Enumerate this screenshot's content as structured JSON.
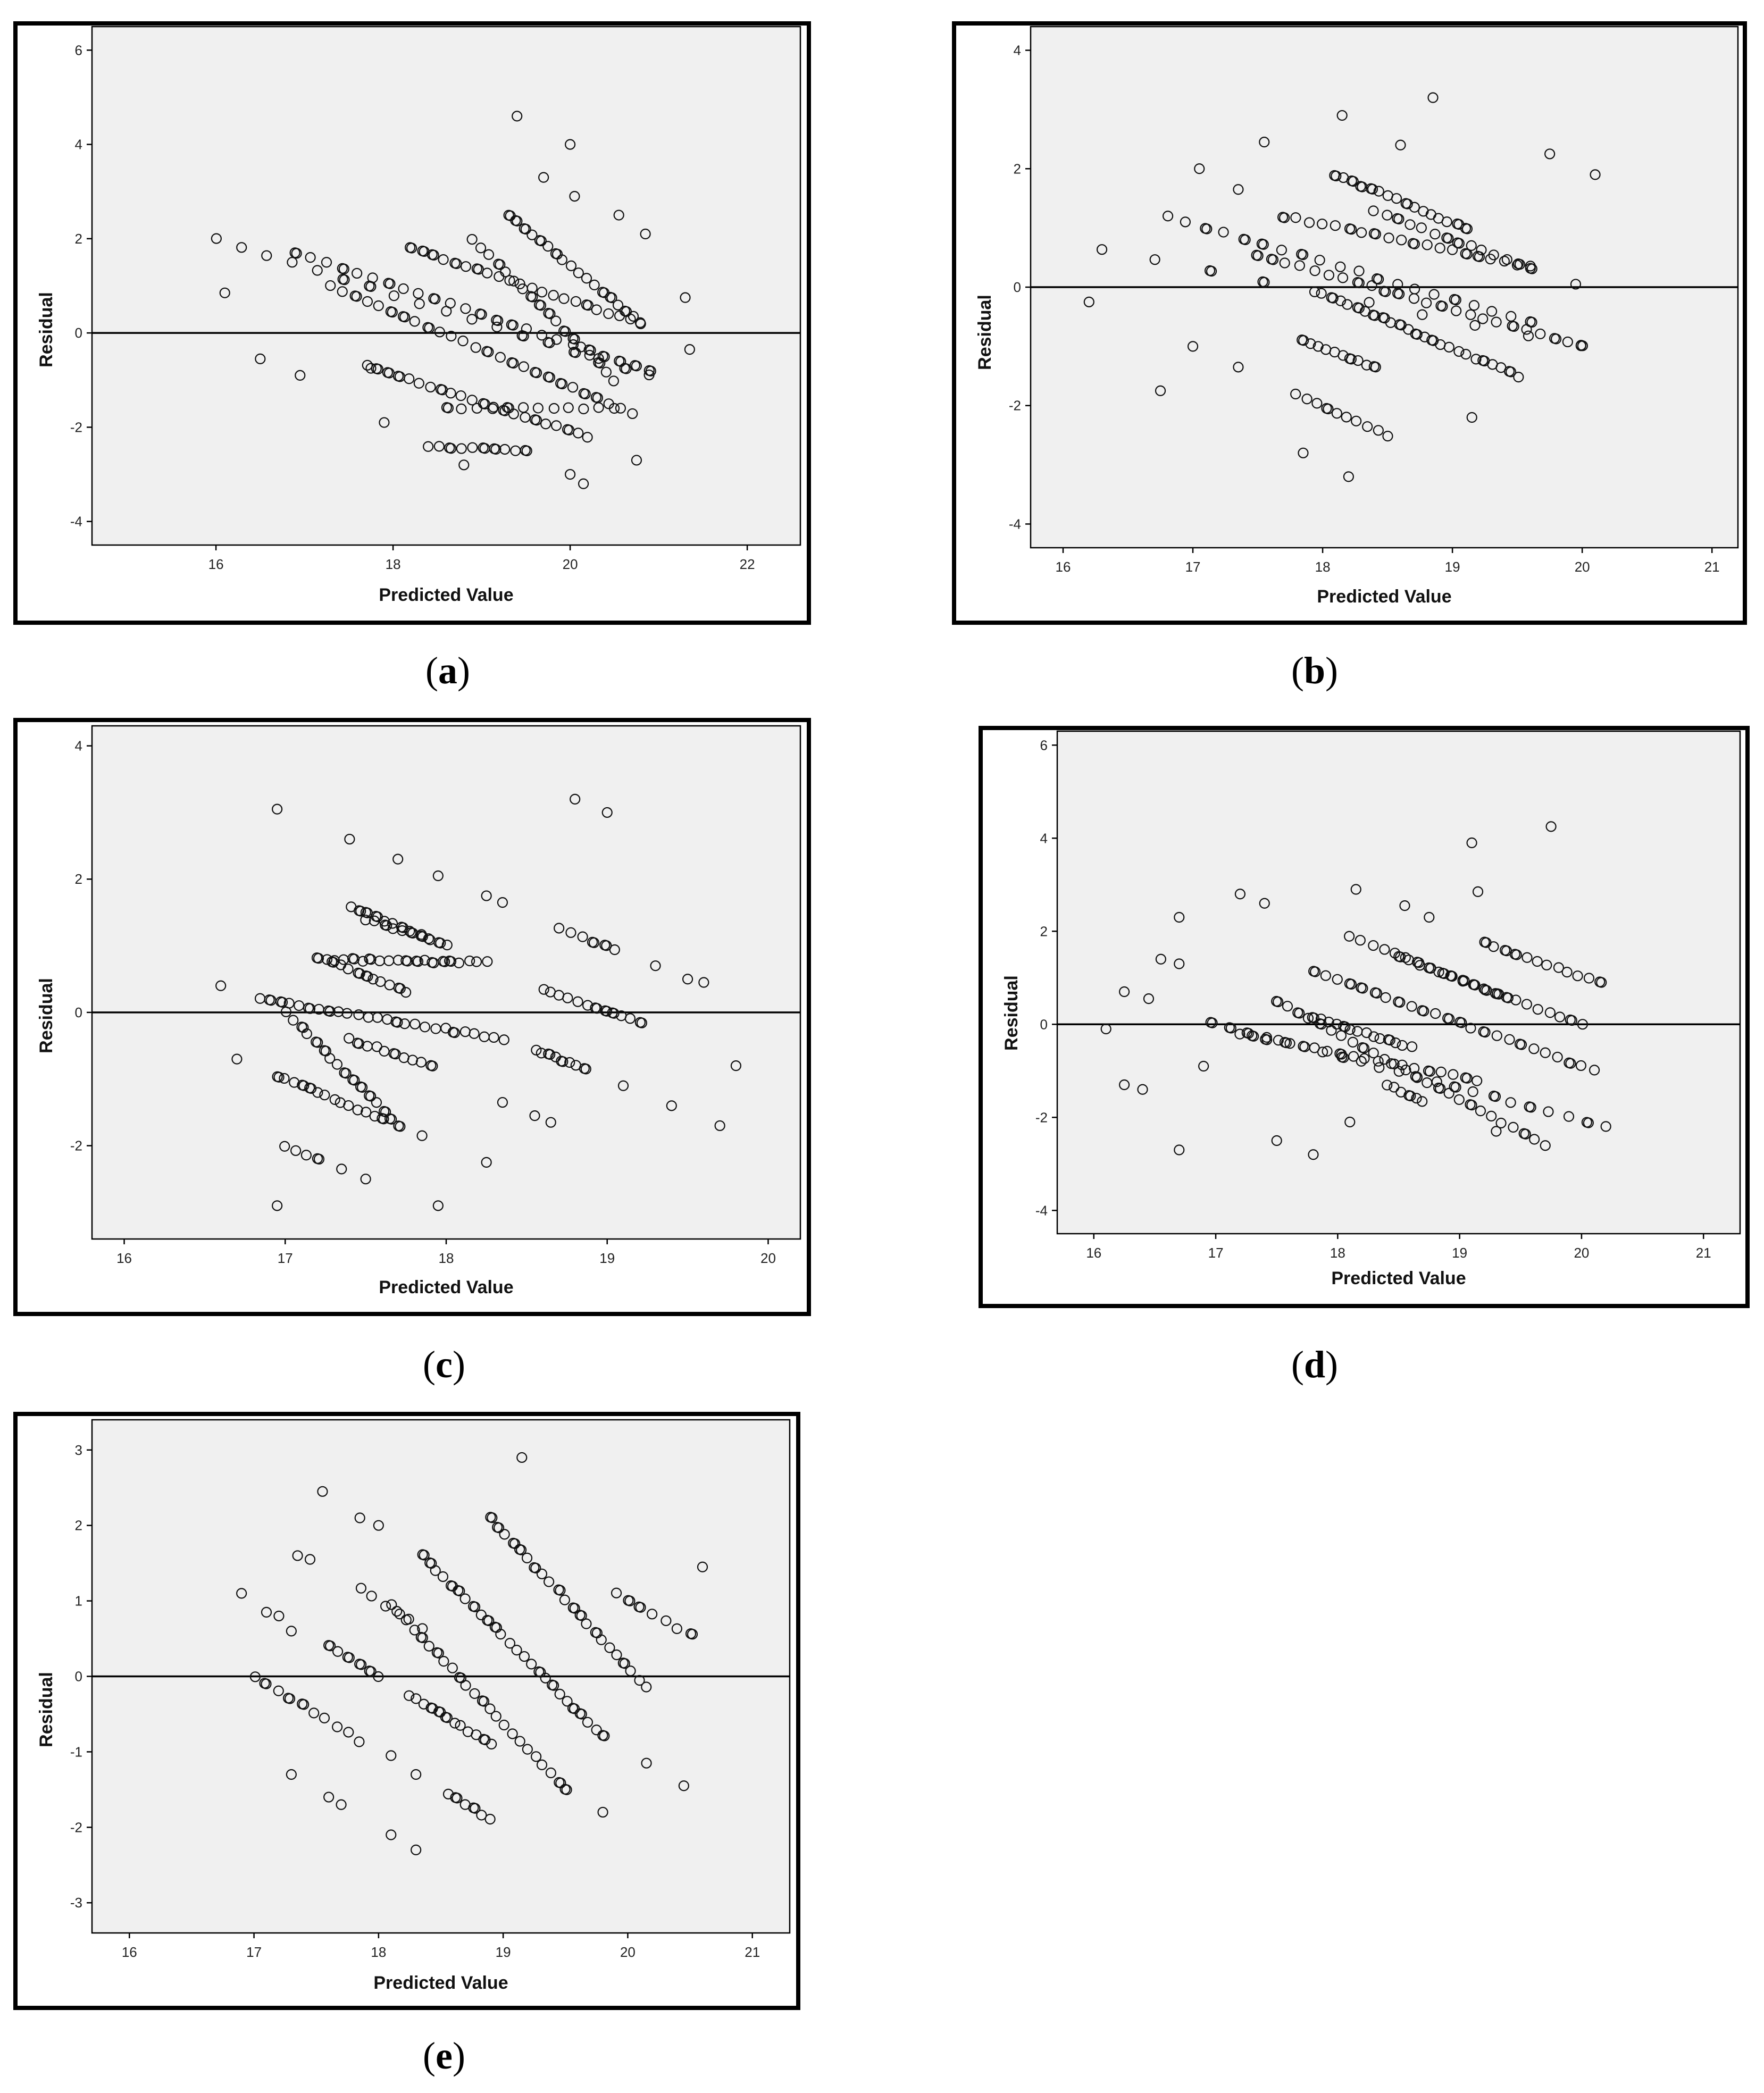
{
  "chart_data": [
    {
      "type": "scatter",
      "caption_letter": "a",
      "xlabel": "Predicted Value",
      "ylabel": "Residual",
      "xlim": [
        14.6,
        22.6
      ],
      "ylim": [
        -4.5,
        6.5
      ],
      "xticks": [
        16,
        18,
        20,
        22
      ],
      "yticks": [
        -4,
        -2,
        0,
        2,
        4,
        6
      ],
      "reference_line": 0,
      "grid": false,
      "bands": [
        {
          "x0": 16.0,
          "y0": 2.0,
          "x1": 20.9,
          "y1": -0.9,
          "n": 18
        },
        {
          "x0": 16.9,
          "y0": 1.7,
          "x1": 20.9,
          "y1": -0.8,
          "n": 24
        },
        {
          "x0": 17.3,
          "y0": 1.0,
          "x1": 20.7,
          "y1": -1.7,
          "n": 26
        },
        {
          "x0": 17.7,
          "y0": -0.7,
          "x1": 20.2,
          "y1": -2.2,
          "n": 22
        },
        {
          "x0": 18.2,
          "y0": 1.8,
          "x1": 20.8,
          "y1": 0.2,
          "n": 22
        },
        {
          "x0": 18.9,
          "y0": 2.0,
          "x1": 20.5,
          "y1": -1.0,
          "n": 18
        },
        {
          "x0": 19.3,
          "y0": 2.5,
          "x1": 20.8,
          "y1": 0.2,
          "n": 18
        },
        {
          "x0": 18.6,
          "y0": -1.6,
          "x1": 20.5,
          "y1": -1.6,
          "n": 12
        },
        {
          "x0": 18.4,
          "y0": -2.4,
          "x1": 19.5,
          "y1": -2.5,
          "n": 10
        }
      ],
      "outliers": [
        [
          19.4,
          4.6
        ],
        [
          20.0,
          4.0
        ],
        [
          19.7,
          3.3
        ],
        [
          20.05,
          2.9
        ],
        [
          20.55,
          2.5
        ],
        [
          20.85,
          2.1
        ],
        [
          16.1,
          0.85
        ],
        [
          16.5,
          -0.55
        ],
        [
          16.95,
          -0.9
        ],
        [
          17.75,
          -0.75
        ],
        [
          20.0,
          -3.0
        ],
        [
          20.15,
          -3.2
        ],
        [
          20.75,
          -2.7
        ],
        [
          21.3,
          0.75
        ],
        [
          21.35,
          -0.35
        ],
        [
          17.9,
          -1.9
        ],
        [
          18.8,
          -2.8
        ]
      ]
    },
    {
      "type": "scatter",
      "caption_letter": "b",
      "xlabel": "Predicted Value",
      "ylabel": "Residual",
      "xlim": [
        15.75,
        21.2
      ],
      "ylim": [
        -4.4,
        4.4
      ],
      "xticks": [
        16,
        17,
        18,
        19,
        20,
        21
      ],
      "yticks": [
        -4,
        -2,
        0,
        2,
        4
      ],
      "reference_line": 0,
      "grid": false,
      "bands": [
        {
          "x0": 16.3,
          "y0": 0.65,
          "x1": 20.0,
          "y1": -1.0,
          "n": 10
        },
        {
          "x0": 16.8,
          "y0": 1.2,
          "x1": 19.6,
          "y1": -0.6,
          "n": 20
        },
        {
          "x0": 17.5,
          "y0": 0.55,
          "x1": 20.0,
          "y1": -1.0,
          "n": 24
        },
        {
          "x0": 17.7,
          "y0": 1.2,
          "x1": 19.6,
          "y1": 0.35,
          "n": 20
        },
        {
          "x0": 18.0,
          "y0": -0.1,
          "x1": 19.5,
          "y1": -1.5,
          "n": 24
        },
        {
          "x0": 17.85,
          "y0": -0.9,
          "x1": 18.4,
          "y1": -1.35,
          "n": 10
        },
        {
          "x0": 18.1,
          "y0": 1.9,
          "x1": 19.1,
          "y1": 1.0,
          "n": 16
        },
        {
          "x0": 17.8,
          "y0": -1.8,
          "x1": 18.5,
          "y1": -2.5,
          "n": 10
        },
        {
          "x0": 18.4,
          "y0": 1.3,
          "x1": 19.6,
          "y1": 0.3,
          "n": 14
        }
      ],
      "outliers": [
        [
          18.85,
          3.2
        ],
        [
          18.15,
          2.9
        ],
        [
          17.55,
          2.45
        ],
        [
          18.6,
          2.4
        ],
        [
          19.75,
          2.25
        ],
        [
          20.1,
          1.9
        ],
        [
          17.05,
          2.0
        ],
        [
          17.35,
          1.65
        ],
        [
          16.2,
          -0.25
        ],
        [
          16.75,
          -1.75
        ],
        [
          17.0,
          -1.0
        ],
        [
          17.35,
          -1.35
        ],
        [
          17.85,
          -2.8
        ],
        [
          18.2,
          -3.2
        ],
        [
          19.15,
          -2.2
        ],
        [
          19.95,
          0.05
        ]
      ]
    },
    {
      "type": "scatter",
      "caption_letter": "c",
      "xlabel": "Predicted Value",
      "ylabel": "Residual",
      "xlim": [
        15.8,
        20.2
      ],
      "ylim": [
        -3.4,
        4.3
      ],
      "xticks": [
        16,
        17,
        18,
        19,
        20
      ],
      "yticks": [
        -2,
        0,
        2,
        4
      ],
      "reference_line": 0,
      "grid": false,
      "bands": [
        {
          "x0": 16.85,
          "y0": 0.2,
          "x1": 18.35,
          "y1": -0.4,
          "n": 26
        },
        {
          "x0": 17.0,
          "y0": 0.0,
          "x1": 17.7,
          "y1": -1.7,
          "n": 16
        },
        {
          "x0": 17.2,
          "y0": 0.8,
          "x1": 18.25,
          "y1": 0.75,
          "n": 20
        },
        {
          "x0": 17.3,
          "y0": 0.75,
          "x1": 17.75,
          "y1": 0.3,
          "n": 10
        },
        {
          "x0": 17.4,
          "y0": 1.6,
          "x1": 18.0,
          "y1": 1.0,
          "n": 12
        },
        {
          "x0": 17.5,
          "y0": 1.4,
          "x1": 17.9,
          "y1": 1.1,
          "n": 8
        },
        {
          "x0": 16.95,
          "y0": -0.95,
          "x1": 17.6,
          "y1": -1.6,
          "n": 14
        },
        {
          "x0": 17.0,
          "y0": -2.0,
          "x1": 17.2,
          "y1": -2.2,
          "n": 4
        },
        {
          "x0": 17.4,
          "y0": -0.4,
          "x1": 17.9,
          "y1": -0.8,
          "n": 10
        },
        {
          "x0": 18.6,
          "y0": 0.35,
          "x1": 19.2,
          "y1": -0.15,
          "n": 12
        },
        {
          "x0": 18.55,
          "y0": -0.55,
          "x1": 18.85,
          "y1": -0.85,
          "n": 8
        },
        {
          "x0": 18.7,
          "y0": 1.25,
          "x1": 19.05,
          "y1": 0.95,
          "n": 6
        }
      ],
      "outliers": [
        [
          16.95,
          3.05
        ],
        [
          17.4,
          2.6
        ],
        [
          17.7,
          2.3
        ],
        [
          17.95,
          2.05
        ],
        [
          18.8,
          3.2
        ],
        [
          19.0,
          3.0
        ],
        [
          16.6,
          0.4
        ],
        [
          16.7,
          -0.7
        ],
        [
          16.95,
          -2.9
        ],
        [
          17.35,
          -2.35
        ],
        [
          17.5,
          -2.5
        ],
        [
          17.85,
          -1.85
        ],
        [
          17.95,
          -2.9
        ],
        [
          18.25,
          -2.25
        ],
        [
          18.35,
          -1.35
        ],
        [
          18.65,
          -1.65
        ],
        [
          19.1,
          -1.1
        ],
        [
          19.3,
          0.7
        ],
        [
          19.4,
          -1.4
        ],
        [
          19.5,
          0.5
        ],
        [
          19.6,
          0.45
        ],
        [
          19.7,
          -1.7
        ],
        [
          19.8,
          -0.8
        ],
        [
          18.25,
          1.75
        ],
        [
          18.35,
          1.65
        ],
        [
          18.55,
          -1.55
        ]
      ]
    },
    {
      "type": "scatter",
      "caption_letter": "d",
      "xlabel": "Predicted Value",
      "ylabel": "Residual",
      "xlim": [
        15.7,
        21.3
      ],
      "ylim": [
        -4.5,
        6.3
      ],
      "xticks": [
        16,
        17,
        18,
        19,
        20,
        21
      ],
      "yticks": [
        -4,
        -2,
        0,
        2,
        4,
        6
      ],
      "reference_line": 0,
      "grid": false,
      "bands": [
        {
          "x0": 16.95,
          "y0": 0.05,
          "x1": 20.2,
          "y1": -2.2,
          "n": 22
        },
        {
          "x0": 17.5,
          "y0": 0.5,
          "x1": 19.7,
          "y1": -2.6,
          "n": 26
        },
        {
          "x0": 17.2,
          "y0": -0.2,
          "x1": 19.15,
          "y1": -1.2,
          "n": 20
        },
        {
          "x0": 17.8,
          "y0": 1.15,
          "x1": 20.1,
          "y1": -1.0,
          "n": 24
        },
        {
          "x0": 18.1,
          "y0": 1.9,
          "x1": 19.3,
          "y1": 0.65,
          "n": 14
        },
        {
          "x0": 17.8,
          "y0": 0.15,
          "x1": 18.6,
          "y1": -0.5,
          "n": 14
        },
        {
          "x0": 18.5,
          "y0": 1.45,
          "x1": 20.0,
          "y1": 0.0,
          "n": 18
        },
        {
          "x0": 19.2,
          "y0": 1.75,
          "x1": 20.15,
          "y1": 0.9,
          "n": 12
        },
        {
          "x0": 18.4,
          "y0": -1.3,
          "x1": 18.7,
          "y1": -1.65,
          "n": 6
        }
      ],
      "outliers": [
        [
          19.75,
          4.25
        ],
        [
          19.1,
          3.9
        ],
        [
          19.15,
          2.85
        ],
        [
          18.15,
          2.9
        ],
        [
          17.2,
          2.8
        ],
        [
          17.4,
          2.6
        ],
        [
          18.55,
          2.55
        ],
        [
          18.75,
          2.3
        ],
        [
          16.7,
          2.3
        ],
        [
          16.55,
          1.4
        ],
        [
          16.7,
          1.3
        ],
        [
          16.25,
          0.7
        ],
        [
          16.45,
          0.55
        ],
        [
          16.1,
          -0.1
        ],
        [
          16.25,
          -1.3
        ],
        [
          16.4,
          -1.4
        ],
        [
          16.7,
          -2.7
        ],
        [
          16.9,
          -0.9
        ],
        [
          17.5,
          -2.5
        ],
        [
          17.8,
          -2.8
        ],
        [
          18.1,
          -2.1
        ],
        [
          19.3,
          -2.3
        ]
      ]
    },
    {
      "type": "scatter",
      "caption_letter": "e",
      "xlabel": "Predicted Value",
      "ylabel": "Residual",
      "xlim": [
        15.7,
        21.3
      ],
      "ylim": [
        -3.4,
        3.4
      ],
      "xticks": [
        16,
        17,
        18,
        19,
        20,
        21
      ],
      "yticks": [
        -3,
        -2,
        -1,
        0,
        1,
        2,
        3
      ],
      "reference_line": 0,
      "grid": false,
      "bands": [
        {
          "x0": 18.35,
          "y0": 1.6,
          "x1": 19.8,
          "y1": -0.8,
          "n": 26
        },
        {
          "x0": 18.9,
          "y0": 2.1,
          "x1": 20.15,
          "y1": -0.15,
          "n": 22
        },
        {
          "x0": 18.1,
          "y0": 0.95,
          "x1": 19.5,
          "y1": -1.5,
          "n": 24
        },
        {
          "x0": 18.25,
          "y0": -0.25,
          "x1": 18.9,
          "y1": -0.9,
          "n": 12
        },
        {
          "x0": 17.6,
          "y0": 0.4,
          "x1": 18.0,
          "y1": 0.0,
          "n": 6
        },
        {
          "x0": 17.0,
          "y0": 0.0,
          "x1": 17.85,
          "y1": -0.85,
          "n": 10
        },
        {
          "x0": 18.55,
          "y0": -1.55,
          "x1": 18.9,
          "y1": -1.9,
          "n": 6
        },
        {
          "x0": 19.9,
          "y0": 1.1,
          "x1": 20.5,
          "y1": 0.55,
          "n": 7
        },
        {
          "x0": 17.85,
          "y0": 1.15,
          "x1": 18.35,
          "y1": 0.65,
          "n": 6
        }
      ],
      "outliers": [
        [
          19.15,
          2.9
        ],
        [
          17.55,
          2.45
        ],
        [
          17.85,
          2.1
        ],
        [
          18.0,
          2.0
        ],
        [
          17.35,
          1.6
        ],
        [
          17.45,
          1.55
        ],
        [
          16.9,
          1.1
        ],
        [
          17.1,
          0.85
        ],
        [
          17.2,
          0.8
        ],
        [
          17.3,
          0.6
        ],
        [
          17.3,
          -1.3
        ],
        [
          17.6,
          -1.6
        ],
        [
          17.7,
          -1.7
        ],
        [
          18.1,
          -2.1
        ],
        [
          18.3,
          -2.3
        ],
        [
          18.1,
          -1.05
        ],
        [
          18.3,
          -1.3
        ],
        [
          19.8,
          -1.8
        ],
        [
          20.15,
          -1.15
        ],
        [
          20.45,
          -1.45
        ],
        [
          20.6,
          1.45
        ]
      ]
    }
  ]
}
